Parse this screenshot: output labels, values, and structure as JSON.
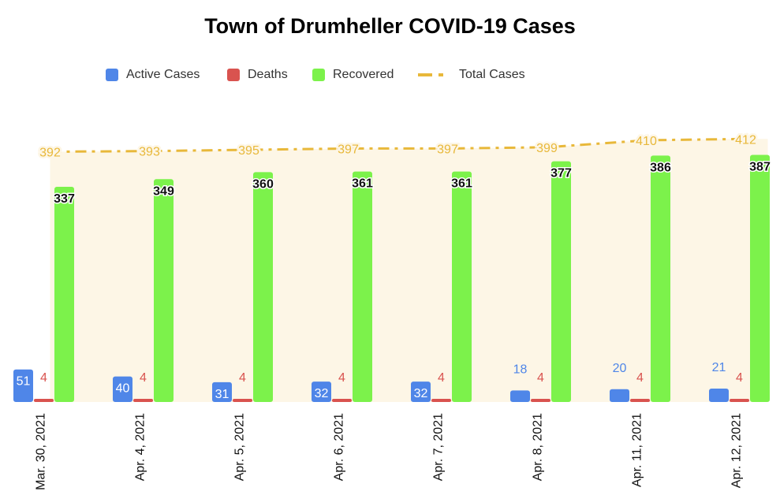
{
  "chart_data": {
    "type": "bar",
    "title": "Town of Drumheller COVID-19 Cases",
    "categories": [
      "Mar. 30, 2021",
      "Apr. 4, 2021",
      "Apr. 5, 2021",
      "Apr. 6, 2021",
      "Apr. 7, 2021",
      "Apr. 8, 2021",
      "Apr. 11, 2021",
      "Apr. 12, 2021"
    ],
    "series": [
      {
        "name": "Active Cases",
        "type": "bar",
        "color": "#4f86e8",
        "values": [
          51,
          40,
          31,
          32,
          32,
          18,
          20,
          21
        ]
      },
      {
        "name": "Deaths",
        "type": "bar",
        "color": "#d9534f",
        "values": [
          4,
          4,
          4,
          4,
          4,
          4,
          4,
          4
        ]
      },
      {
        "name": "Recovered",
        "type": "bar",
        "color": "#7cf24b",
        "values": [
          337,
          349,
          360,
          361,
          361,
          377,
          386,
          387
        ]
      },
      {
        "name": "Total Cases",
        "type": "line",
        "style": "dash-dot",
        "color": "#e8b83a",
        "values": [
          392,
          393,
          395,
          397,
          397,
          399,
          410,
          412
        ]
      }
    ],
    "legend_position": "top",
    "area_fill_color": "#fdf6e6",
    "grid": false
  }
}
